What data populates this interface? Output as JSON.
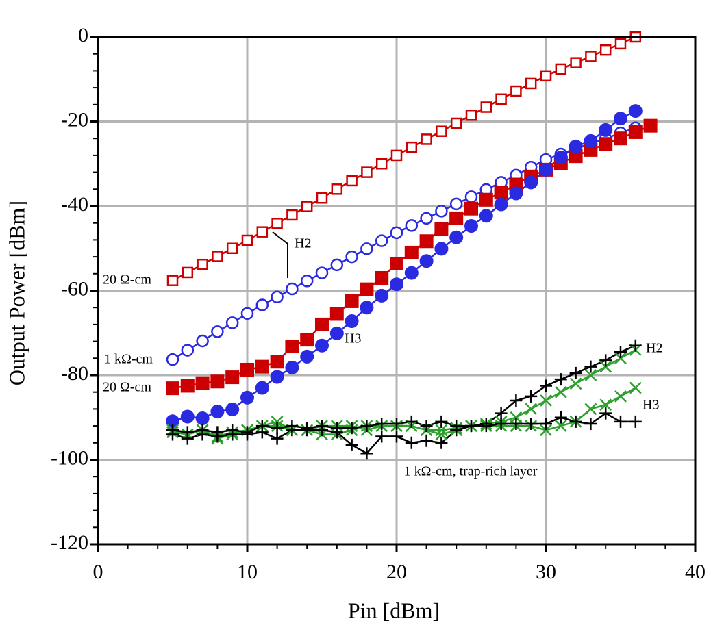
{
  "chart_data": {
    "type": "line",
    "x_label": "Pin [dBm]",
    "y_label": "Output Power [dBm]",
    "xlim": [
      0,
      40
    ],
    "xticks": [
      0,
      10,
      20,
      30,
      40
    ],
    "ylim": [
      -120,
      0
    ],
    "yticks": [
      -120,
      -100,
      -80,
      -60,
      -40,
      -20,
      0
    ],
    "grid": true,
    "series": [
      {
        "color": "#cc0000",
        "marker": "open-square",
        "x": [
          5,
          6,
          7,
          8,
          9,
          10,
          11,
          12,
          13,
          14,
          15,
          16,
          17,
          18,
          19,
          20,
          21,
          22,
          23,
          24,
          25,
          26,
          27,
          28,
          29,
          30,
          31,
          32,
          33,
          34,
          35,
          36
        ],
        "values": [
          -57.6,
          -55.7,
          -53.8,
          -51.9,
          -50.0,
          -48.1,
          -46.1,
          -44.1,
          -42.1,
          -40.1,
          -38.1,
          -36.0,
          -34.0,
          -32.0,
          -30.0,
          -28.0,
          -26.1,
          -24.2,
          -22.3,
          -20.4,
          -18.5,
          -16.6,
          -14.7,
          -12.8,
          -11.0,
          -9.2,
          -7.6,
          -6.1,
          -4.6,
          -3.1,
          -1.6,
          0
        ]
      },
      {
        "color": "#2a2ae0",
        "marker": "open-circle",
        "x": [
          5,
          6,
          7,
          8,
          9,
          10,
          11,
          12,
          13,
          14,
          15,
          16,
          17,
          18,
          19,
          20,
          21,
          22,
          23,
          24,
          25,
          26,
          27,
          28,
          29,
          30,
          31,
          32,
          33,
          34,
          35,
          36
        ],
        "values": [
          -76.3,
          -74.1,
          -71.9,
          -69.7,
          -67.6,
          -65.4,
          -63.4,
          -61.5,
          -59.6,
          -57.7,
          -55.8,
          -53.9,
          -52.0,
          -50.1,
          -48.2,
          -46.3,
          -44.6,
          -42.9,
          -41.2,
          -39.5,
          -37.8,
          -36.1,
          -34.4,
          -32.7,
          -30.8,
          -29.0,
          -27.7,
          -26.4,
          -25.2,
          -24.0,
          -22.7,
          -21.5
        ]
      },
      {
        "color": "#cc0000",
        "marker": "filled-square",
        "x": [
          5,
          6,
          7,
          8,
          9,
          10,
          11,
          12,
          13,
          14,
          15,
          16,
          17,
          18,
          19,
          20,
          21,
          22,
          23,
          24,
          25,
          26,
          27,
          28,
          29,
          30,
          31,
          32,
          33,
          34,
          35,
          36,
          37
        ],
        "values": [
          -83.1,
          -82.5,
          -81.9,
          -81.5,
          -80.5,
          -78.7,
          -78.0,
          -76.8,
          -73.2,
          -71.6,
          -68.0,
          -65.5,
          -62.5,
          -59.7,
          -57.0,
          -53.6,
          -51.0,
          -48.3,
          -45.5,
          -42.9,
          -40.6,
          -38.5,
          -36.8,
          -34.9,
          -33.0,
          -31.4,
          -29.8,
          -28.2,
          -26.7,
          -25.3,
          -24.0,
          -22.5,
          -21.0
        ]
      },
      {
        "color": "#2a2ae0",
        "marker": "filled-circle",
        "x": [
          5,
          6,
          7,
          8,
          9,
          10,
          11,
          12,
          13,
          14,
          15,
          16,
          17,
          18,
          19,
          20,
          21,
          22,
          23,
          24,
          25,
          26,
          27,
          28,
          29,
          30,
          31,
          32,
          33,
          34,
          35,
          36
        ],
        "values": [
          -90.9,
          -89.8,
          -90.2,
          -88.6,
          -88.1,
          -85.3,
          -83.0,
          -80.4,
          -78.2,
          -75.6,
          -73.0,
          -70.1,
          -67.2,
          -64.0,
          -61.2,
          -58.5,
          -55.8,
          -53.0,
          -50.1,
          -47.4,
          -44.7,
          -42.3,
          -39.6,
          -37.0,
          -34.4,
          -31.4,
          -28.5,
          -25.9,
          -24.6,
          -22.0,
          -19.3,
          -17.5
        ]
      },
      {
        "color": "#2ca02c",
        "marker": "cross",
        "x": [
          5,
          6,
          7,
          8,
          9,
          10,
          11,
          12,
          13,
          14,
          15,
          16,
          17,
          18,
          19,
          20,
          21,
          22,
          23,
          24,
          25,
          26,
          27,
          28,
          29,
          30,
          31,
          32,
          33,
          34,
          35,
          36
        ],
        "values": [
          -93.5,
          -94,
          -93,
          -94.5,
          -93.5,
          -93,
          -92,
          -91,
          -93,
          -93,
          -94,
          -94,
          -93,
          -92,
          -92,
          -92,
          -92,
          -93,
          -93,
          -92.5,
          -92,
          -91.5,
          -91,
          -90,
          -88,
          -86,
          -84,
          -82,
          -80,
          -78,
          -76,
          -74
        ]
      },
      {
        "color": "#2ca02c",
        "marker": "cross",
        "x": [
          5,
          6,
          7,
          8,
          9,
          10,
          11,
          12,
          13,
          14,
          15,
          16,
          17,
          18,
          19,
          20,
          21,
          22,
          23,
          24,
          25,
          26,
          27,
          28,
          29,
          30,
          31,
          32,
          33,
          34,
          35,
          36
        ],
        "values": [
          -93,
          -94,
          -93,
          -95,
          -94,
          -93,
          -92,
          -92,
          -93,
          -93,
          -92,
          -92,
          -92,
          -93,
          -92,
          -92,
          -92,
          -93,
          -94,
          -93,
          -92,
          -92,
          -92,
          -92,
          -92,
          -93,
          -92,
          -91,
          -88,
          -87,
          -85,
          -83
        ]
      },
      {
        "color": "#000000",
        "marker": "plus",
        "x": [
          5,
          6,
          7,
          8,
          9,
          10,
          11,
          12,
          13,
          14,
          15,
          16,
          17,
          18,
          19,
          20,
          21,
          22,
          23,
          24,
          25,
          26,
          27,
          28,
          29,
          30,
          31,
          32,
          33,
          34,
          35,
          36
        ],
        "values": [
          -93,
          -93.5,
          -93,
          -93.5,
          -93,
          -93.5,
          -92,
          -92.5,
          -92,
          -92.5,
          -92,
          -92.5,
          -92.5,
          -92,
          -91.5,
          -91.5,
          -91,
          -92,
          -91,
          -92,
          -92,
          -91.5,
          -89,
          -86,
          -85,
          -82.5,
          -81,
          -79.5,
          -78,
          -76.5,
          -74.5,
          -73
        ]
      },
      {
        "color": "#000000",
        "marker": "plus",
        "x": [
          5,
          6,
          7,
          8,
          9,
          10,
          11,
          12,
          13,
          14,
          15,
          16,
          17,
          18,
          19,
          20,
          21,
          22,
          23,
          24,
          25,
          26,
          27,
          28,
          29,
          30,
          31,
          32,
          33,
          34,
          35,
          36
        ],
        "values": [
          -94,
          -95,
          -94,
          -94.5,
          -94,
          -94,
          -93.5,
          -95,
          -93,
          -93,
          -93,
          -93.5,
          -96.5,
          -98.5,
          -94.5,
          -94.5,
          -96,
          -95.5,
          -96,
          -93,
          -92,
          -92,
          -91.5,
          -91.5,
          -91.5,
          -91.5,
          -90,
          -91,
          -91.5,
          -89,
          -91,
          -91
        ]
      }
    ],
    "annotations": [
      "20 Ω-cm",
      "1 kΩ-cm",
      "20 Ω-cm",
      "H2",
      "H3",
      "H2",
      "H3",
      "1 kΩ-cm, trap-rich layer"
    ]
  }
}
